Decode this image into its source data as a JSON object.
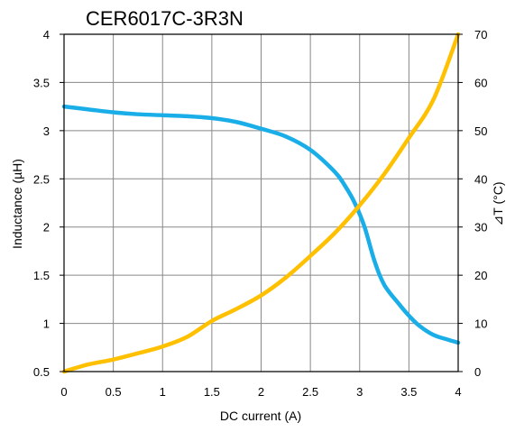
{
  "chart_data": {
    "type": "line",
    "title": "CER6017C-3R3N",
    "xlabel": "DC current (A)",
    "ylabel": "Inductance (µH)",
    "y2label": "⊿T (°C)",
    "xlim": [
      0,
      4
    ],
    "ylim": [
      0.5,
      4
    ],
    "y2lim": [
      0,
      70
    ],
    "x_ticks": [
      "0",
      "0.5",
      "1",
      "1.5",
      "2",
      "2.5",
      "3",
      "3.5",
      "4"
    ],
    "y_ticks": [
      "0.5",
      "1",
      "1.5",
      "2",
      "2.5",
      "3",
      "3.5",
      "4"
    ],
    "y2_ticks": [
      "0",
      "10",
      "20",
      "30",
      "40",
      "50",
      "60",
      "70"
    ],
    "grid": true,
    "series": [
      {
        "axis": "left",
        "color": "#1AAEE8",
        "x": [
          0,
          0.25,
          0.5,
          0.75,
          1.0,
          1.25,
          1.5,
          1.75,
          2.0,
          2.25,
          2.5,
          2.75,
          2.85,
          2.95,
          3.05,
          3.15,
          3.25,
          3.4,
          3.5,
          3.6,
          3.75,
          3.9,
          4.0
        ],
        "values": [
          3.25,
          3.22,
          3.19,
          3.17,
          3.16,
          3.15,
          3.13,
          3.09,
          3.02,
          2.94,
          2.8,
          2.57,
          2.43,
          2.25,
          2.0,
          1.65,
          1.4,
          1.2,
          1.08,
          0.98,
          0.88,
          0.83,
          0.8
        ]
      },
      {
        "axis": "right",
        "color": "#FFC000",
        "x": [
          0,
          0.25,
          0.5,
          0.75,
          1.0,
          1.25,
          1.5,
          1.75,
          2.0,
          2.25,
          2.5,
          2.75,
          3.0,
          3.25,
          3.5,
          3.75,
          4.0
        ],
        "values": [
          0,
          1.5,
          2.5,
          3.8,
          5.2,
          7.2,
          10.5,
          13.0,
          15.8,
          19.5,
          24.0,
          28.8,
          34.5,
          41.0,
          48.5,
          56.5,
          70.0
        ]
      }
    ]
  }
}
